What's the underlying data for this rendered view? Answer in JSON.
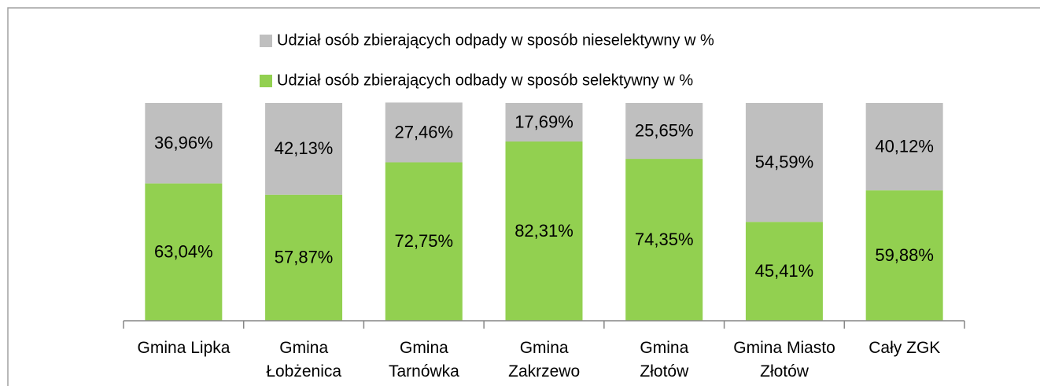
{
  "chart_data": {
    "type": "stacked_bar",
    "categories": [
      "Gmina Lipka",
      "Gmina\nŁobżenica",
      "Gmina\nTarnówka",
      "Gmina\nZakrzewo",
      "Gmina\nZłotów",
      "Gmina Miasto\nZłotów",
      "Cały ZGK"
    ],
    "series": [
      {
        "name": "Udział osób zbierających odbady w sposób selektywny w %",
        "color": "#92d050",
        "values": [
          63.04,
          57.87,
          72.75,
          82.31,
          74.35,
          45.41,
          59.88
        ],
        "value_labels": [
          "63,04%",
          "57,87%",
          "72,75%",
          "82,31%",
          "74,35%",
          "45,41%",
          "59,88%"
        ]
      },
      {
        "name": "Udział osób zbierających odpady w sposób nieselektywny w %",
        "color": "#bfbfbf",
        "values": [
          36.96,
          42.13,
          27.46,
          17.69,
          25.65,
          54.59,
          40.12
        ],
        "value_labels": [
          "36,96%",
          "42,13%",
          "27,46%",
          "17,69%",
          "25,65%",
          "54,59%",
          "40,12%"
        ]
      }
    ],
    "ylim": [
      0,
      100
    ]
  }
}
